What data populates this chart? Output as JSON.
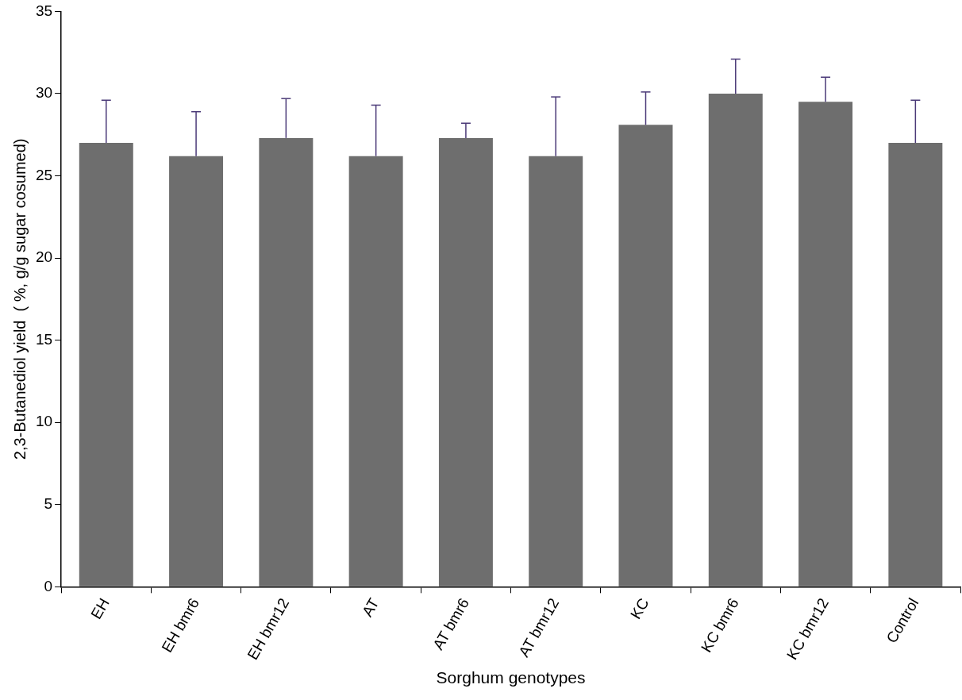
{
  "chart_data": {
    "type": "bar",
    "xlabel": "Sorghum genotypes",
    "ylabel": "2,3-Butanediol yield  ( %, g/g sugar cosumed)",
    "categories": [
      "EH",
      "EH bmr6",
      "EH bmr12",
      "AT",
      "AT bmr6",
      "AT bmr12",
      "KC",
      "KC bmr6",
      "KC bmr12",
      "Control"
    ],
    "values": [
      27.0,
      26.2,
      27.3,
      26.2,
      27.3,
      26.2,
      28.1,
      30.0,
      29.5,
      27.0
    ],
    "errors": [
      [
        27.0,
        29.6
      ],
      [
        26.2,
        28.9
      ],
      [
        27.3,
        29.7
      ],
      [
        26.2,
        29.3
      ],
      [
        27.3,
        28.2
      ],
      [
        26.2,
        29.8
      ],
      [
        28.1,
        30.1
      ],
      [
        30.0,
        32.1
      ],
      [
        29.5,
        31.0
      ],
      [
        27.0,
        29.6
      ]
    ],
    "color": "#6e6e6e",
    "ylim": [
      0,
      35
    ],
    "yticks": [
      0,
      5,
      10,
      15,
      20,
      25,
      30,
      35
    ],
    "grid": false,
    "legend": false
  }
}
